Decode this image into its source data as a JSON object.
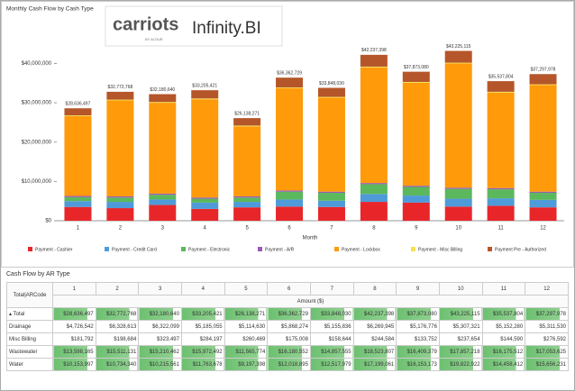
{
  "chart_data": {
    "type": "stacked-bar",
    "title": "Monthly Cash Flow by Cash Type",
    "x_label": "Month",
    "categories": [
      "1",
      "2",
      "3",
      "4",
      "5",
      "6",
      "7",
      "8",
      "9",
      "10",
      "11",
      "12"
    ],
    "series": [
      {
        "name": "Payment - Cashier",
        "color": "#e8262a",
        "values": [
          3500000,
          3200000,
          4000000,
          3000000,
          3400000,
          3600000,
          3500000,
          4800000,
          4600000,
          3600000,
          3800000,
          3400000
        ]
      },
      {
        "name": "Payment - Credit Card",
        "color": "#4f9bd9",
        "values": [
          1500000,
          1600000,
          1400000,
          1600000,
          1400000,
          1800000,
          1600000,
          2000000,
          1800000,
          2000000,
          1900000,
          1900000
        ]
      },
      {
        "name": "Payment - Electronic",
        "color": "#5cb85c",
        "values": [
          1000000,
          1100000,
          1200000,
          1000000,
          1100000,
          2000000,
          2000000,
          2500000,
          2200000,
          2500000,
          2300000,
          1800000
        ]
      },
      {
        "name": "Payment - A/R",
        "color": "#9b59b6",
        "values": [
          300000,
          300000,
          300000,
          300000,
          300000,
          300000,
          300000,
          300000,
          300000,
          300000,
          300000,
          300000
        ]
      },
      {
        "name": "Payment - Lockbox",
        "color": "#ff9a0a",
        "values": [
          20300000,
          24400000,
          23100000,
          25000000,
          17800000,
          26000000,
          23900000,
          29400000,
          26200000,
          31600000,
          24300000,
          27100000
        ]
      },
      {
        "name": "Payment - Misc Billing",
        "color": "#f5e050",
        "values": [
          200000,
          200000,
          200000,
          200000,
          200000,
          200000,
          200000,
          200000,
          200000,
          200000,
          200000,
          200000
        ]
      },
      {
        "name": "Payment Pre - Authorized",
        "color": "#b5562a",
        "values": [
          1800000,
          2000000,
          2000000,
          2100000,
          1900000,
          2500000,
          2300000,
          3000000,
          2600000,
          3000000,
          2700000,
          2600000
        ]
      }
    ],
    "total_labels": [
      "$28,636,497",
      "$32,772,768",
      "$32,180,640",
      "$33,205,421",
      "$26,138,271",
      "$36,362,729",
      "$33,848,030",
      "$42,237,398",
      "$37,873,080",
      "$43,225,115",
      "$35,537,804",
      "$37,297,978"
    ],
    "ylim": [
      0,
      44000000
    ],
    "yticks": [
      {
        "value": 0,
        "label": "$0"
      },
      {
        "value": 10000000,
        "label": "$10,000,000"
      },
      {
        "value": 20000000,
        "label": "$20,000,000"
      },
      {
        "value": 30000000,
        "label": "$30,000,000"
      },
      {
        "value": 40000000,
        "label": "$40,000,000"
      }
    ],
    "grid": false,
    "legend": "bottom"
  },
  "logos": {
    "brand": "carriots",
    "brand_sub": "BY ALTAIR",
    "product": "Infinity.BI"
  },
  "table": {
    "title": "Cash Flow by AR Type",
    "corner": "Total|ARCode",
    "measure": "Amount ($)",
    "columns": [
      "1",
      "2",
      "3",
      "4",
      "5",
      "6",
      "7",
      "8",
      "9",
      "10",
      "11",
      "12"
    ],
    "rows": [
      {
        "label": "Total",
        "cells": [
          "$28,636,497",
          "$32,772,768",
          "$32,180,640",
          "$33,205,421",
          "$26,138,271",
          "$36,362,729",
          "$33,848,030",
          "$42,237,398",
          "$37,873,080",
          "$43,225,115",
          "$35,537,804",
          "$37,297,978"
        ]
      },
      {
        "label": "Drainage",
        "cells": [
          "$4,726,542",
          "$6,328,613",
          "$6,322,099",
          "$5,185,055",
          "$5,114,630",
          "$5,868,274",
          "$5,155,836",
          "$6,269,945",
          "$5,176,776",
          "$5,307,321",
          "$5,152,280",
          "$5,311,530"
        ]
      },
      {
        "label": "Misc Billing",
        "cells": [
          "$181,792",
          "$198,684",
          "$323,497",
          "$284,197",
          "$260,469",
          "$175,008",
          "$158,644",
          "$244,584",
          "$133,752",
          "$237,654",
          "$144,590",
          "$276,592"
        ]
      },
      {
        "label": "Wastewater",
        "cells": [
          "$13,598,165",
          "$15,511,131",
          "$15,210,462",
          "$15,972,492",
          "$11,565,774",
          "$16,180,552",
          "$14,857,555",
          "$18,523,807",
          "$16,409,379",
          "$17,857,218",
          "$16,175,512",
          "$17,053,625"
        ]
      },
      {
        "label": "Water",
        "cells": [
          "$10,153,997",
          "$10,734,340",
          "$10,215,561",
          "$11,763,678",
          "$9,197,398",
          "$12,018,895",
          "$12,517,979",
          "$17,199,061",
          "$16,153,173",
          "$19,822,922",
          "$14,458,412",
          "$15,656,231"
        ]
      }
    ]
  }
}
